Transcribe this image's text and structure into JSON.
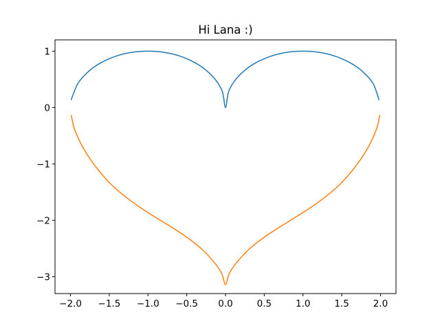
{
  "chart_data": {
    "type": "line",
    "title": "Hi Lana :)",
    "xlabel": "",
    "ylabel": "",
    "xlim": [
      -2.2,
      2.2
    ],
    "ylim": [
      -3.3,
      1.2
    ],
    "grid": false,
    "x_ticks": [
      {
        "value": -2.0,
        "label": "−2.0"
      },
      {
        "value": -1.5,
        "label": "−1.5"
      },
      {
        "value": -1.0,
        "label": "−1.0"
      },
      {
        "value": -0.5,
        "label": "−0.5"
      },
      {
        "value": 0.0,
        "label": "0.0"
      },
      {
        "value": 0.5,
        "label": "0.5"
      },
      {
        "value": 1.0,
        "label": "1.0"
      },
      {
        "value": 1.5,
        "label": "1.5"
      },
      {
        "value": 2.0,
        "label": "2.0"
      }
    ],
    "y_ticks": [
      {
        "value": 1,
        "label": "1"
      },
      {
        "value": 0,
        "label": "0"
      },
      {
        "value": -1,
        "label": "−1"
      },
      {
        "value": -2,
        "label": "−2"
      },
      {
        "value": -3,
        "label": "−3"
      }
    ],
    "series": [
      {
        "color": "#1f77b4",
        "x": [
          -1.99,
          -1.9,
          -1.75,
          -1.6,
          -1.4,
          -1.2,
          -1.0,
          -0.8,
          -0.6,
          -0.4,
          -0.25,
          -0.12,
          -0.04,
          0.0,
          0.04,
          0.12,
          0.25,
          0.4,
          0.6,
          0.8,
          1.0,
          1.2,
          1.4,
          1.6,
          1.75,
          1.9,
          1.98
        ],
        "y": [
          0.141,
          0.436,
          0.661,
          0.8,
          0.917,
          0.98,
          1.0,
          0.98,
          0.917,
          0.8,
          0.661,
          0.477,
          0.28,
          0.0,
          0.28,
          0.477,
          0.661,
          0.8,
          0.917,
          0.98,
          1.0,
          0.98,
          0.917,
          0.8,
          0.661,
          0.436,
          0.141
        ]
      },
      {
        "color": "#ff7f0e",
        "x": [
          -1.99,
          -1.95,
          -1.85,
          -1.7,
          -1.5,
          -1.3,
          -1.1,
          -0.9,
          -0.7,
          -0.5,
          -0.3,
          -0.15,
          -0.05,
          0.0,
          0.05,
          0.15,
          0.3,
          0.5,
          0.7,
          0.9,
          1.1,
          1.3,
          1.5,
          1.7,
          1.85,
          1.95,
          1.99
        ],
        "y": [
          -0.141,
          -0.375,
          -0.684,
          -1.003,
          -1.33,
          -1.574,
          -1.773,
          -1.95,
          -2.12,
          -2.3,
          -2.518,
          -2.74,
          -2.939,
          -3.14,
          -2.939,
          -2.74,
          -2.518,
          -2.3,
          -2.12,
          -1.95,
          -1.773,
          -1.574,
          -1.33,
          -1.003,
          -0.684,
          -0.375,
          -0.141
        ]
      }
    ]
  }
}
